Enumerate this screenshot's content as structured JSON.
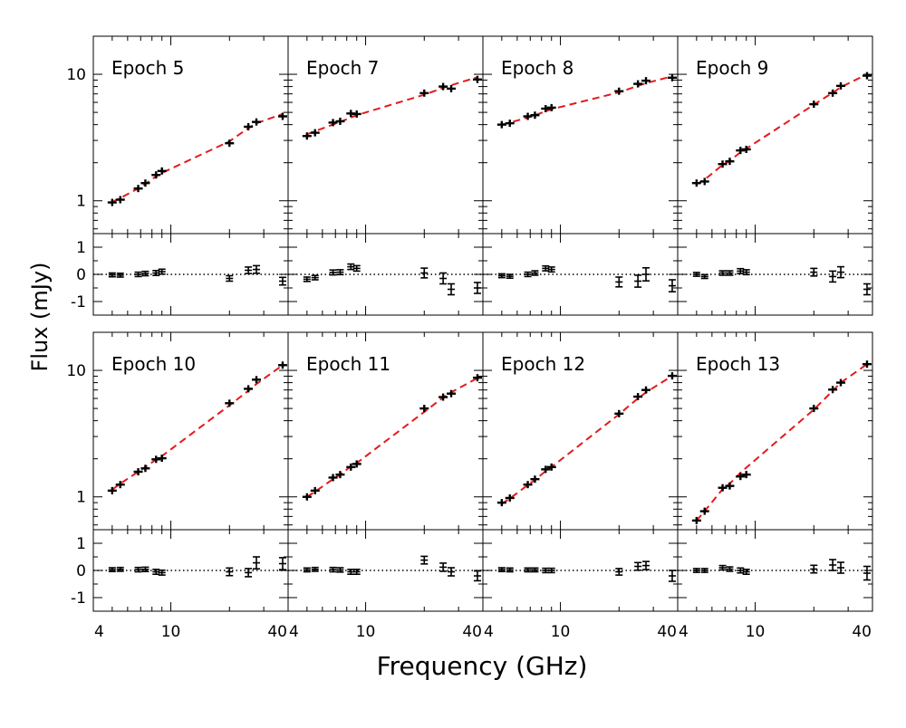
{
  "figure": {
    "ylabel": "Flux (mJy)",
    "xlabel": "Frequency (GHz)"
  },
  "chart_data": {
    "type": "scatter",
    "xlabel": "Frequency (GHz)",
    "ylabel": "Flux (mJy)",
    "xscale": "log",
    "xlim": [
      4,
      40
    ],
    "x_ticklabels": [
      "4",
      "10",
      "40"
    ],
    "top_yscale": "log",
    "top_ylim": [
      0.55,
      20
    ],
    "top_ticklabels": [
      "1",
      "10"
    ],
    "residual_ylim": [
      -1.5,
      1.5
    ],
    "residual_ticklabels": [
      "-1",
      "0",
      "1"
    ],
    "fit_color": "#e41a1c",
    "frequencies": [
      5.0,
      5.5,
      6.8,
      7.4,
      8.4,
      9.0,
      20.0,
      25.0,
      27.5,
      37.5
    ],
    "panels": [
      {
        "title": "Epoch 5",
        "flux": [
          0.97,
          1.02,
          1.25,
          1.38,
          1.6,
          1.72,
          2.85,
          3.85,
          4.2,
          4.65
        ],
        "model": [
          0.98,
          1.05,
          1.25,
          1.36,
          1.56,
          1.66,
          2.95,
          3.75,
          4.1,
          4.85
        ],
        "residual": [
          -0.02,
          -0.03,
          0.0,
          0.03,
          0.05,
          0.1,
          -0.15,
          0.15,
          0.18,
          -0.25
        ],
        "residual_err": [
          0.07,
          0.07,
          0.08,
          0.08,
          0.09,
          0.09,
          0.1,
          0.12,
          0.14,
          0.14
        ]
      },
      {
        "title": "Epoch 7",
        "flux": [
          3.25,
          3.45,
          4.15,
          4.25,
          4.9,
          4.85,
          7.1,
          8.0,
          7.7,
          9.1
        ],
        "model": [
          3.35,
          3.55,
          4.0,
          4.2,
          4.55,
          4.75,
          6.9,
          7.8,
          8.2,
          9.5
        ],
        "residual": [
          -0.18,
          -0.12,
          0.07,
          0.08,
          0.28,
          0.22,
          0.05,
          -0.15,
          -0.55,
          -0.5
        ],
        "residual_err": [
          0.08,
          0.08,
          0.09,
          0.09,
          0.1,
          0.1,
          0.18,
          0.2,
          0.2,
          0.2
        ]
      },
      {
        "title": "Epoch 8",
        "flux": [
          4.0,
          4.1,
          4.65,
          4.75,
          5.35,
          5.45,
          7.35,
          8.4,
          8.9,
          9.4
        ],
        "model": [
          4.0,
          4.15,
          4.55,
          4.75,
          5.1,
          5.3,
          7.2,
          8.1,
          8.5,
          9.65
        ],
        "residual": [
          -0.05,
          -0.07,
          0.0,
          0.05,
          0.22,
          0.18,
          -0.28,
          -0.25,
          0.0,
          -0.42
        ],
        "residual_err": [
          0.07,
          0.07,
          0.08,
          0.08,
          0.09,
          0.09,
          0.18,
          0.22,
          0.24,
          0.22
        ]
      },
      {
        "title": "Epoch 9",
        "flux": [
          1.38,
          1.42,
          1.95,
          2.05,
          2.5,
          2.55,
          5.8,
          7.1,
          8.1,
          9.75
        ],
        "model": [
          1.35,
          1.47,
          1.92,
          2.07,
          2.42,
          2.58,
          5.75,
          7.15,
          7.9,
          10.0
        ],
        "residual": [
          0.0,
          -0.08,
          0.05,
          0.05,
          0.12,
          0.08,
          0.08,
          -0.08,
          0.08,
          -0.55
        ],
        "residual_err": [
          0.07,
          0.07,
          0.08,
          0.08,
          0.09,
          0.09,
          0.14,
          0.2,
          0.2,
          0.2
        ]
      },
      {
        "title": "Epoch 10",
        "flux": [
          1.12,
          1.25,
          1.58,
          1.68,
          1.98,
          2.02,
          5.5,
          7.15,
          8.45,
          11.0
        ],
        "model": [
          1.14,
          1.27,
          1.58,
          1.72,
          1.97,
          2.1,
          5.3,
          6.9,
          7.8,
          11.0
        ],
        "residual": [
          0.03,
          0.04,
          0.03,
          0.04,
          -0.05,
          -0.08,
          -0.05,
          -0.08,
          0.28,
          0.25
        ],
        "residual_err": [
          0.07,
          0.07,
          0.08,
          0.08,
          0.09,
          0.09,
          0.14,
          0.15,
          0.22,
          0.22
        ]
      },
      {
        "title": "Epoch 11",
        "flux": [
          1.0,
          1.12,
          1.42,
          1.5,
          1.72,
          1.82,
          5.0,
          6.15,
          6.55,
          8.75
        ],
        "model": [
          1.0,
          1.1,
          1.38,
          1.5,
          1.74,
          1.85,
          4.7,
          6.1,
          6.7,
          8.7
        ],
        "residual": [
          0.02,
          0.04,
          0.03,
          0.02,
          -0.05,
          -0.05,
          0.38,
          0.12,
          -0.05,
          -0.2
        ],
        "residual_err": [
          0.07,
          0.07,
          0.08,
          0.08,
          0.09,
          0.09,
          0.14,
          0.15,
          0.15,
          0.18
        ]
      },
      {
        "title": "Epoch 12",
        "flux": [
          0.9,
          0.98,
          1.25,
          1.38,
          1.65,
          1.72,
          4.55,
          6.2,
          7.0,
          9.05
        ],
        "model": [
          0.88,
          0.97,
          1.24,
          1.36,
          1.6,
          1.72,
          4.5,
          6.0,
          6.7,
          9.05
        ],
        "residual": [
          0.03,
          0.02,
          0.02,
          0.02,
          0.0,
          0.0,
          -0.05,
          0.15,
          0.18,
          -0.2
        ],
        "residual_err": [
          0.07,
          0.07,
          0.07,
          0.07,
          0.08,
          0.08,
          0.12,
          0.14,
          0.15,
          0.2
        ]
      },
      {
        "title": "Epoch 13",
        "flux": [
          0.65,
          0.77,
          1.18,
          1.22,
          1.45,
          1.5,
          5.0,
          7.05,
          8.0,
          11.2
        ],
        "model": [
          0.65,
          0.77,
          1.15,
          1.27,
          1.55,
          1.7,
          4.9,
          6.9,
          8.0,
          11.2
        ],
        "residual": [
          0.0,
          0.0,
          0.1,
          0.05,
          0.0,
          -0.05,
          0.05,
          0.2,
          0.1,
          -0.1
        ],
        "residual_err": [
          0.07,
          0.07,
          0.08,
          0.08,
          0.09,
          0.09,
          0.14,
          0.2,
          0.2,
          0.25
        ]
      }
    ]
  }
}
